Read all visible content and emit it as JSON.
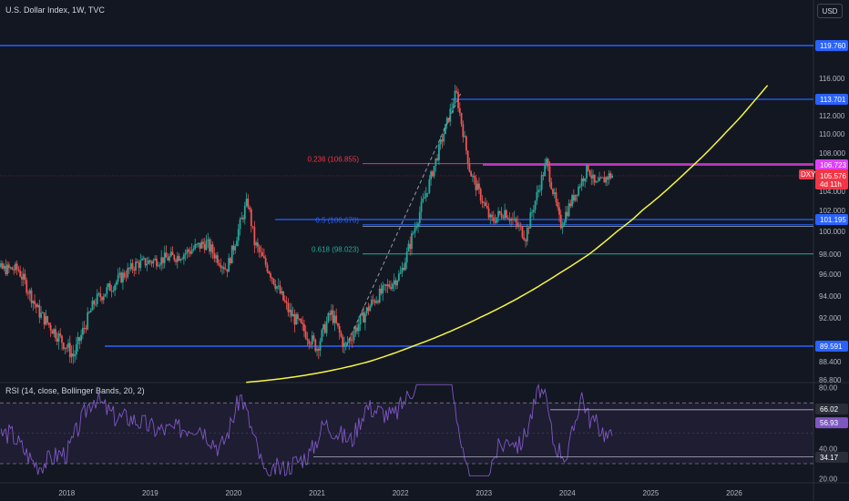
{
  "header": {
    "title": "U.S. Dollar Index, 1W, TVC",
    "currency_button": "USD"
  },
  "rsi_header": {
    "title": "RSI (14, close, Bollinger Bands, 20, 2)"
  },
  "colors": {
    "background": "#131722",
    "bull": "#26a69a",
    "bear": "#ef5350",
    "level": "#2962ff",
    "trendline": "#f5f542",
    "fib_0236": "#f23645",
    "fib_05": "#2962ff",
    "fib_0618": "#22ab94",
    "resistance": "#e040fb",
    "rsi_line": "#7e57c2"
  },
  "chart_data": [
    {
      "type": "candlestick",
      "title": "U.S. Dollar Index, 1W, TVC",
      "x_ticks": [
        "2018",
        "2019",
        "2020",
        "2021",
        "2022",
        "2023",
        "2024",
        "2025",
        "2026"
      ],
      "y_ticks": [
        "116.000",
        "112.000",
        "110.000",
        "108.000",
        "104.000",
        "102.000",
        "100.000",
        "98.000",
        "96.000",
        "94.000",
        "92.000",
        "88.400",
        "86.800"
      ],
      "ylim": [
        86.5,
        121
      ],
      "path_points": [
        [
          "2017-06",
          96.5
        ],
        [
          "2017-09",
          92.5
        ],
        [
          "2018-02",
          88.8
        ],
        [
          "2018-05",
          93.5
        ],
        [
          "2018-11",
          97.0
        ],
        [
          "2019-05",
          97.8
        ],
        [
          "2019-09",
          99.0
        ],
        [
          "2019-12",
          96.5
        ],
        [
          "2020-03",
          103.0
        ],
        [
          "2020-04",
          99.0
        ],
        [
          "2020-06",
          96.5
        ],
        [
          "2020-09",
          92.5
        ],
        [
          "2021-01",
          89.5
        ],
        [
          "2021-03",
          92.5
        ],
        [
          "2021-05",
          89.5
        ],
        [
          "2021-09",
          93.5
        ],
        [
          "2022-01",
          96.0
        ],
        [
          "2022-05",
          104.5
        ],
        [
          "2022-09",
          114.5
        ],
        [
          "2022-11",
          106.0
        ],
        [
          "2023-02",
          101.0
        ],
        [
          "2023-04",
          102.0
        ],
        [
          "2023-07",
          99.6
        ],
        [
          "2023-10",
          107.0
        ],
        [
          "2023-12",
          100.6
        ],
        [
          "2024-04",
          106.5
        ],
        [
          "2024-05",
          104.5
        ],
        [
          "2024-07",
          105.6
        ]
      ],
      "current_price": {
        "symbol": "DXY",
        "value": "105.576",
        "countdown": "4d 11h"
      },
      "price_labels": [
        "119.760",
        "113.701",
        "106.723",
        "101.195",
        "89.591"
      ],
      "horizontal_levels": [
        119.76,
        113.701,
        106.723,
        101.195,
        89.591,
        100.5
      ],
      "fibonacci": [
        {
          "label": "0.236 (106.855)",
          "value": 106.855
        },
        {
          "label": "0.5 (100.670)",
          "value": 100.67
        },
        {
          "label": "0.618 (98.023)",
          "value": 98.023
        }
      ],
      "trendline": "parabolic support curve from 2020 to above 2026"
    },
    {
      "type": "line",
      "title": "RSI (14, close, Bollinger Bands, 20, 2)",
      "y_ticks": [
        "80.00",
        "40.00",
        "20.00"
      ],
      "ylim": [
        18,
        84
      ],
      "bands": [
        70,
        30
      ],
      "price_labels": [
        "66.02",
        "56.93",
        "34.17"
      ]
    }
  ]
}
